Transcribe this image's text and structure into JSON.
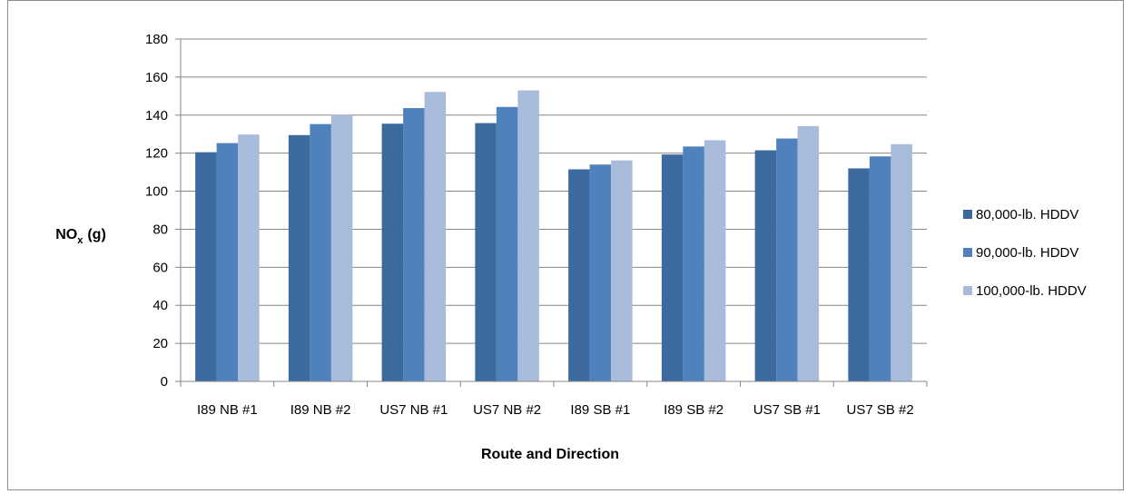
{
  "chart_data": {
    "type": "bar",
    "title": "",
    "xlabel": "Route and Direction",
    "ylabel_main": "NO",
    "ylabel_sub": "x",
    "ylabel_unit": "(g)",
    "ylim": [
      0,
      180
    ],
    "yticks": [
      0,
      20,
      40,
      60,
      80,
      100,
      120,
      140,
      160,
      180
    ],
    "grid": true,
    "legend_position": "right",
    "categories": [
      "I89 NB #1",
      "I89 NB #2",
      "US7 NB #1",
      "US7 NB #2",
      "I89 SB #1",
      "I89 SB #2",
      "US7 SB #1",
      "US7 SB #2"
    ],
    "series": [
      {
        "name": "80,000-lb. HDDV",
        "color": "#3d6a9e",
        "values": [
          120.5,
          129.5,
          135.5,
          135.8,
          111.5,
          119.3,
          121.5,
          112.0
        ]
      },
      {
        "name": "90,000-lb. HDDV",
        "color": "#4f81bd",
        "values": [
          125.3,
          135.3,
          143.7,
          144.3,
          114.0,
          123.5,
          127.7,
          118.3
        ]
      },
      {
        "name": "100,000-lb. HDDV",
        "color": "#a9bbdb",
        "values": [
          129.8,
          140.2,
          152.2,
          153.0,
          116.2,
          126.8,
          134.2,
          124.7
        ]
      }
    ]
  }
}
